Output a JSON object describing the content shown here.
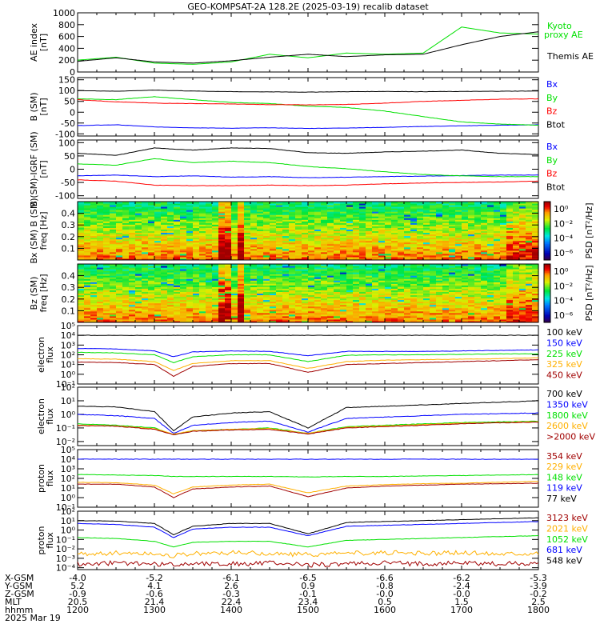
{
  "title": "GEO-KOMPSAT-2A 128.2E (2025-03-19) recalib dataset",
  "chart_data": [
    {
      "type": "line",
      "id": "ae",
      "ylabel": "AE index",
      "yunit": "[nT]",
      "ylim": [
        0,
        1000
      ],
      "yscale": "linear",
      "yticks": [
        "1000",
        "800",
        "600",
        "400",
        "200",
        "0"
      ],
      "ytick_values": [
        1000,
        800,
        600,
        400,
        200,
        0
      ],
      "x": [
        12.0,
        12.5,
        13.0,
        13.5,
        14.0,
        14.5,
        15.0,
        15.5,
        16.0,
        16.5,
        17.0,
        17.5,
        18.0
      ],
      "series": [
        {
          "name": "Kyoto proxy AE",
          "color": "#00e000",
          "values": [
            200,
            250,
            150,
            130,
            170,
            300,
            240,
            320,
            300,
            320,
            760,
            660,
            640
          ]
        },
        {
          "name": "Themis AE",
          "color": "#000000",
          "values": [
            180,
            240,
            170,
            150,
            190,
            250,
            300,
            260,
            290,
            300,
            460,
            600,
            680
          ]
        }
      ],
      "legend": [
        "Kyoto",
        "proxy AE",
        "Themis AE"
      ]
    },
    {
      "type": "line",
      "id": "bsm",
      "ylabel": "B (SM)",
      "yunit": "[nT]",
      "ylim": [
        -110,
        160
      ],
      "yscale": "linear",
      "yticks": [
        "150",
        "100",
        "50",
        "0",
        "-50",
        "-100"
      ],
      "ytick_values": [
        150,
        100,
        50,
        0,
        -50,
        -100
      ],
      "x": [
        12.0,
        12.5,
        13.0,
        13.5,
        14.0,
        14.5,
        15.0,
        15.5,
        16.0,
        16.5,
        17.0,
        17.5,
        18.0
      ],
      "series": [
        {
          "name": "Bx",
          "color": "#0000ff",
          "values": [
            -62,
            -58,
            -68,
            -72,
            -74,
            -72,
            -75,
            -73,
            -70,
            -66,
            -63,
            -60,
            -58
          ]
        },
        {
          "name": "By",
          "color": "#00e000",
          "values": [
            62,
            58,
            72,
            58,
            45,
            40,
            28,
            22,
            5,
            -20,
            -45,
            -55,
            -60
          ]
        },
        {
          "name": "Bz",
          "color": "#ff0000",
          "values": [
            58,
            48,
            42,
            40,
            38,
            35,
            34,
            36,
            42,
            50,
            55,
            60,
            62
          ]
        },
        {
          "name": "Btot",
          "color": "#000000",
          "values": [
            100,
            97,
            102,
            98,
            95,
            94,
            93,
            95,
            96,
            95,
            96,
            97,
            98
          ]
        }
      ]
    },
    {
      "type": "line",
      "id": "bigrf",
      "ylabel": "B (SM)-IGRF (SM)",
      "yunit": "[nT]",
      "ylim": [
        -110,
        110
      ],
      "yscale": "linear",
      "yticks": [
        "100",
        "50",
        "0",
        "-50",
        "-100"
      ],
      "ytick_values": [
        100,
        50,
        0,
        -50,
        -100
      ],
      "x": [
        12.0,
        12.5,
        13.0,
        13.5,
        14.0,
        14.5,
        15.0,
        15.5,
        16.0,
        16.5,
        17.0,
        17.5,
        18.0
      ],
      "series": [
        {
          "name": "Bx",
          "color": "#0000ff",
          "values": [
            -25,
            -22,
            -28,
            -25,
            -30,
            -28,
            -32,
            -30,
            -28,
            -26,
            -24,
            -22,
            -22
          ]
        },
        {
          "name": "By",
          "color": "#00e000",
          "values": [
            20,
            15,
            40,
            25,
            30,
            25,
            10,
            2,
            -10,
            -20,
            -25,
            -28,
            -28
          ]
        },
        {
          "name": "Bz",
          "color": "#ff0000",
          "values": [
            -40,
            -45,
            -60,
            -62,
            -62,
            -60,
            -62,
            -60,
            -55,
            -52,
            -50,
            -48,
            -45
          ]
        },
        {
          "name": "Btot",
          "color": "#000000",
          "values": [
            60,
            52,
            80,
            72,
            80,
            78,
            62,
            60,
            65,
            68,
            72,
            60,
            55
          ]
        }
      ]
    },
    {
      "type": "heatmap",
      "id": "spec-bx",
      "ylabel": "Bx (SM) B (SM)",
      "yunit": "freq [Hz]",
      "ylim": [
        0,
        0.5
      ],
      "yticks": [
        "0.4",
        "0.3",
        "0.2",
        "0.1"
      ],
      "ytick_values": [
        0.4,
        0.3,
        0.2,
        0.1
      ],
      "colorbar": {
        "label": "PSD [nT²/Hz]",
        "ticks": [
          "10⁰",
          "10⁻²",
          "10⁻⁴",
          "10⁻⁶"
        ],
        "tick_exponents": [
          0,
          -2,
          -4,
          -6
        ],
        "range": [
          -7,
          1
        ]
      },
      "bright_intervals_hours": [
        [
          13.9,
          14.0
        ],
        [
          14.1,
          14.15
        ]
      ]
    },
    {
      "type": "heatmap",
      "id": "spec-bz",
      "ylabel": "Bz (SM)",
      "yunit": "freq [Hz]",
      "ylim": [
        0,
        0.5
      ],
      "yticks": [
        "0.4",
        "0.3",
        "0.2",
        "0.1"
      ],
      "ytick_values": [
        0.4,
        0.3,
        0.2,
        0.1
      ],
      "colorbar": {
        "label": "PSD [nT²/Hz]",
        "ticks": [
          "10⁰",
          "10⁻²",
          "10⁻⁴",
          "10⁻⁶"
        ],
        "tick_exponents": [
          0,
          -2,
          -4,
          -6
        ],
        "range": [
          -7,
          1
        ]
      },
      "bright_intervals_hours": [
        [
          13.9,
          14.0
        ],
        [
          14.1,
          14.15
        ]
      ]
    },
    {
      "type": "line",
      "id": "eflux1",
      "ylabel": "electron",
      "ylabel2": "flux",
      "ylim_log10": [
        -1,
        5
      ],
      "yscale": "log",
      "yticks": [
        "10⁵",
        "10⁴",
        "10³",
        "10²",
        "10¹",
        "10⁰",
        "10⁻¹"
      ],
      "ytick_exponents": [
        5,
        4,
        3,
        2,
        1,
        0,
        -1
      ],
      "x": [
        12.0,
        12.5,
        13.0,
        13.25,
        13.5,
        14.0,
        14.5,
        15.0,
        15.5,
        16.0,
        16.5,
        17.0,
        17.5,
        18.0
      ],
      "series": [
        {
          "name": "100 keV",
          "color": "#000000",
          "log10_values": [
            4.0,
            4.0,
            4.0,
            4.0,
            4.0,
            4.0,
            4.0,
            4.0,
            4.0,
            4.0,
            4.0,
            4.0,
            4.0,
            4.0
          ]
        },
        {
          "name": "150 keV",
          "color": "#0000ff",
          "log10_values": [
            2.65,
            2.6,
            2.4,
            1.8,
            2.3,
            2.4,
            2.35,
            1.9,
            2.35,
            2.35,
            2.35,
            2.4,
            2.45,
            2.5
          ]
        },
        {
          "name": "225 keV",
          "color": "#00e000",
          "log10_values": [
            2.25,
            2.2,
            2.0,
            1.2,
            1.8,
            2.0,
            2.0,
            1.3,
            1.95,
            2.0,
            2.0,
            2.05,
            2.1,
            2.1
          ]
        },
        {
          "name": "325 keV",
          "color": "#ffb000",
          "log10_values": [
            1.6,
            1.55,
            1.3,
            0.4,
            1.1,
            1.4,
            1.4,
            0.6,
            1.3,
            1.45,
            1.5,
            1.55,
            1.6,
            1.7
          ]
        },
        {
          "name": "450 keV",
          "color": "#a00000",
          "log10_values": [
            1.25,
            1.2,
            1.0,
            -0.2,
            0.8,
            1.1,
            1.1,
            0.2,
            1.0,
            1.1,
            1.2,
            1.3,
            1.4,
            1.5
          ]
        }
      ]
    },
    {
      "type": "line",
      "id": "eflux2",
      "ylabel": "electron",
      "ylabel2": "flux",
      "ylim_log10": [
        -2.3,
        2
      ],
      "yscale": "log",
      "yticks": [
        "10²",
        "10¹",
        "10⁰",
        "10⁻¹",
        "10⁻²"
      ],
      "ytick_exponents": [
        2,
        1,
        0,
        -1,
        -2
      ],
      "x": [
        12.0,
        12.5,
        13.0,
        13.25,
        13.5,
        14.0,
        14.5,
        15.0,
        15.5,
        16.0,
        16.5,
        17.0,
        17.5,
        18.0
      ],
      "series": [
        {
          "name": "700 keV",
          "color": "#000000",
          "log10_values": [
            0.6,
            0.55,
            0.2,
            -1.2,
            -0.2,
            0.1,
            0.2,
            -1.0,
            0.5,
            0.6,
            0.7,
            0.8,
            0.9,
            1.0
          ]
        },
        {
          "name": "1350 keV",
          "color": "#0000ff",
          "log10_values": [
            0.0,
            -0.1,
            -0.3,
            -1.4,
            -0.8,
            -0.6,
            -0.5,
            -1.3,
            -0.3,
            -0.2,
            -0.1,
            0.0,
            0.05,
            0.1
          ]
        },
        {
          "name": "1800 keV",
          "color": "#00e000",
          "log10_values": [
            -0.7,
            -0.8,
            -1.0,
            -1.5,
            -1.2,
            -1.1,
            -1.0,
            -1.4,
            -0.9,
            -0.8,
            -0.7,
            -0.6,
            -0.55,
            -0.5
          ]
        },
        {
          "name": "2600 keV",
          "color": "#ffb000",
          "log10_values": [
            -0.8,
            -0.85,
            -1.05,
            -1.45,
            -1.2,
            -1.1,
            -1.05,
            -1.4,
            -0.95,
            -0.85,
            -0.75,
            -0.65,
            -0.6,
            -0.55
          ]
        },
        {
          "name": ">2000 keV",
          "color": "#a00000",
          "log10_values": [
            -0.82,
            -0.87,
            -1.1,
            -1.5,
            -1.25,
            -1.15,
            -1.1,
            -1.45,
            -1.0,
            -0.9,
            -0.8,
            -0.7,
            -0.62,
            -0.57
          ]
        }
      ]
    },
    {
      "type": "line",
      "id": "pflux1",
      "ylabel": "proton",
      "ylabel2": "flux",
      "ylim_log10": [
        -1,
        5
      ],
      "yscale": "log",
      "yticks": [
        "10⁵",
        "10⁴",
        "10³",
        "10²",
        "10¹",
        "10⁰",
        "10⁻¹"
      ],
      "ytick_exponents": [
        5,
        4,
        3,
        2,
        1,
        0,
        -1
      ],
      "x": [
        12.0,
        12.5,
        13.0,
        13.25,
        13.5,
        14.0,
        14.5,
        15.0,
        15.5,
        16.0,
        16.5,
        17.0,
        17.5,
        18.0
      ],
      "series": [
        {
          "name": "354 keV",
          "color": "#a00000",
          "log10_values": [
            1.4,
            1.4,
            1.1,
            0.0,
            0.9,
            1.1,
            1.2,
            0.1,
            1.0,
            1.2,
            1.3,
            1.4,
            1.45,
            1.5
          ]
        },
        {
          "name": "229 keV",
          "color": "#ffb000",
          "log10_values": [
            1.6,
            1.55,
            1.3,
            0.4,
            1.1,
            1.3,
            1.4,
            0.5,
            1.2,
            1.35,
            1.45,
            1.5,
            1.6,
            1.7
          ]
        },
        {
          "name": "148 keV",
          "color": "#00e000",
          "log10_values": [
            2.4,
            2.35,
            2.3,
            2.2,
            2.2,
            2.2,
            2.2,
            2.15,
            2.2,
            2.2,
            2.25,
            2.3,
            2.35,
            2.4
          ]
        },
        {
          "name": "119 keV",
          "color": "#0000ff",
          "log10_values": [
            4.0,
            4.0,
            4.0,
            4.0,
            4.0,
            4.0,
            4.0,
            4.0,
            4.0,
            4.0,
            4.0,
            4.0,
            4.0,
            4.0
          ]
        },
        {
          "name": "77 keV",
          "color": "#000000",
          "log10_values": []
        }
      ]
    },
    {
      "type": "line",
      "id": "pflux2",
      "ylabel": "proton",
      "ylabel2": "flux",
      "ylim_log10": [
        -4.2,
        2
      ],
      "yscale": "log",
      "yticks": [
        "10²",
        "10¹",
        "10⁰",
        "10⁻¹",
        "10⁻²",
        "10⁻³",
        "10⁻⁴"
      ],
      "ytick_exponents": [
        2,
        1,
        0,
        -1,
        -2,
        -3,
        -4
      ],
      "x": [
        12.0,
        12.5,
        13.0,
        13.25,
        13.5,
        14.0,
        14.5,
        15.0,
        15.5,
        16.0,
        16.5,
        17.0,
        17.5,
        18.0
      ],
      "series": [
        {
          "name": "3123 keV",
          "color": "#a00000",
          "log10_values": [
            -3.6,
            -3.5,
            -3.6,
            -3.7,
            -3.5,
            -3.6,
            -3.5,
            -3.7,
            -3.6,
            -3.5,
            -3.6,
            -3.5,
            -3.6,
            -3.5
          ]
        },
        {
          "name": "2021 keV",
          "color": "#ffb000",
          "log10_values": [
            -2.6,
            -2.4,
            -2.5,
            -2.7,
            -2.5,
            -2.4,
            -2.5,
            -2.6,
            -2.5,
            -2.4,
            -2.5,
            -2.4,
            -2.5,
            -2.4
          ]
        },
        {
          "name": "1052 keV",
          "color": "#00e000",
          "log10_values": [
            -0.8,
            -0.9,
            -1.2,
            -1.8,
            -1.3,
            -1.2,
            -1.2,
            -1.8,
            -1.1,
            -1.0,
            -0.9,
            -0.8,
            -0.7,
            -0.6
          ]
        },
        {
          "name": "681 keV",
          "color": "#0000ff",
          "log10_values": [
            0.7,
            0.6,
            0.3,
            -0.8,
            0.1,
            0.3,
            0.3,
            -0.6,
            0.4,
            0.5,
            0.6,
            0.7,
            0.8,
            0.9
          ]
        },
        {
          "name": "548 keV",
          "color": "#000000",
          "log10_values": [
            1.0,
            0.95,
            0.7,
            -0.5,
            0.4,
            0.7,
            0.7,
            -0.4,
            0.8,
            0.9,
            1.0,
            1.1,
            1.2,
            1.3
          ]
        }
      ]
    }
  ],
  "xaxis": {
    "row_labels": [
      "X-GSM",
      "Y-GSM",
      "Z-GSM",
      "MLT",
      "hhmm"
    ],
    "date": "2025 Mar 19",
    "xlim_hours": [
      12,
      18
    ],
    "columns": [
      {
        "values": [
          "-4.0",
          "5.2",
          "-0.9",
          "20.5",
          "1200"
        ]
      },
      {
        "values": [
          "-5.2",
          "4.1",
          "-0.6",
          "21.4",
          "1300"
        ]
      },
      {
        "values": [
          "-6.1",
          "2.6",
          "-0.3",
          "22.4",
          "1400"
        ]
      },
      {
        "values": [
          "-6.5",
          "0.9",
          "-0.1",
          "23.4",
          "1500"
        ]
      },
      {
        "values": [
          "-6.6",
          "-0.8",
          "-0.0",
          "0.5",
          "1600"
        ]
      },
      {
        "values": [
          "-6.2",
          "-2.4",
          "-0.0",
          "1.5",
          "1700"
        ]
      },
      {
        "values": [
          "-5.3",
          "-3.9",
          "-0.2",
          "2.5",
          "1800"
        ]
      }
    ]
  }
}
